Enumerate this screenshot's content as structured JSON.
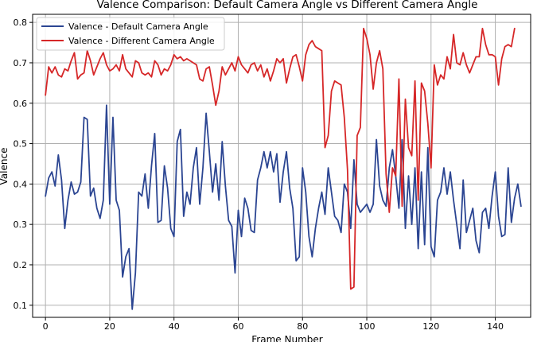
{
  "chart_data": {
    "type": "line",
    "title": "Valence Comparison: Default Camera Angle vs Different Camera Angle",
    "xlabel": "Frame Number",
    "ylabel": "Valence",
    "xlim": [
      -4,
      151
    ],
    "ylim": [
      0.07,
      0.82
    ],
    "xticks": [
      0,
      20,
      40,
      60,
      80,
      100,
      120,
      140
    ],
    "yticks": [
      0.1,
      0.2,
      0.3,
      0.4,
      0.5,
      0.6,
      0.7,
      0.8
    ],
    "grid": true,
    "legend_position": "top-left",
    "series": [
      {
        "name": "Valence - Default Camera Angle",
        "color": "#2b4592",
        "values": [
          0.37,
          0.415,
          0.43,
          0.395,
          0.472,
          0.41,
          0.29,
          0.36,
          0.405,
          0.375,
          0.38,
          0.405,
          0.565,
          0.56,
          0.37,
          0.39,
          0.34,
          0.315,
          0.36,
          0.595,
          0.35,
          0.565,
          0.36,
          0.335,
          0.17,
          0.22,
          0.24,
          0.09,
          0.18,
          0.38,
          0.37,
          0.425,
          0.34,
          0.445,
          0.525,
          0.305,
          0.31,
          0.445,
          0.39,
          0.29,
          0.27,
          0.505,
          0.535,
          0.32,
          0.38,
          0.35,
          0.44,
          0.49,
          0.35,
          0.44,
          0.575,
          0.48,
          0.38,
          0.45,
          0.36,
          0.505,
          0.395,
          0.31,
          0.295,
          0.18,
          0.335,
          0.27,
          0.365,
          0.34,
          0.285,
          0.28,
          0.41,
          0.44,
          0.48,
          0.44,
          0.48,
          0.43,
          0.475,
          0.355,
          0.43,
          0.48,
          0.39,
          0.34,
          0.21,
          0.22,
          0.44,
          0.38,
          0.27,
          0.22,
          0.29,
          0.34,
          0.38,
          0.325,
          0.44,
          0.38,
          0.32,
          0.31,
          0.28,
          0.4,
          0.38,
          0.29,
          0.46,
          0.35,
          0.33,
          0.34,
          0.35,
          0.33,
          0.35,
          0.51,
          0.395,
          0.36,
          0.345,
          0.44,
          0.485,
          0.42,
          0.34,
          0.51,
          0.29,
          0.42,
          0.3,
          0.44,
          0.24,
          0.43,
          0.25,
          0.49,
          0.245,
          0.22,
          0.36,
          0.38,
          0.44,
          0.375,
          0.43,
          0.36,
          0.3,
          0.24,
          0.41,
          0.28,
          0.31,
          0.34,
          0.26,
          0.23,
          0.33,
          0.34,
          0.29,
          0.37,
          0.43,
          0.32,
          0.27,
          0.275,
          0.44,
          0.305,
          0.365,
          0.4,
          0.345
        ]
      },
      {
        "name": "Valence - Different Camera Angle",
        "color": "#d62728",
        "values": [
          0.62,
          0.69,
          0.675,
          0.69,
          0.67,
          0.665,
          0.685,
          0.68,
          0.705,
          0.725,
          0.66,
          0.67,
          0.675,
          0.73,
          0.705,
          0.67,
          0.69,
          0.71,
          0.725,
          0.695,
          0.68,
          0.685,
          0.695,
          0.68,
          0.72,
          0.685,
          0.675,
          0.665,
          0.705,
          0.7,
          0.675,
          0.67,
          0.675,
          0.665,
          0.705,
          0.695,
          0.67,
          0.685,
          0.68,
          0.695,
          0.72,
          0.71,
          0.715,
          0.705,
          0.71,
          0.705,
          0.7,
          0.695,
          0.66,
          0.655,
          0.685,
          0.69,
          0.645,
          0.595,
          0.63,
          0.69,
          0.67,
          0.685,
          0.7,
          0.68,
          0.715,
          0.695,
          0.685,
          0.675,
          0.695,
          0.7,
          0.68,
          0.695,
          0.665,
          0.685,
          0.655,
          0.68,
          0.71,
          0.7,
          0.71,
          0.65,
          0.685,
          0.715,
          0.72,
          0.69,
          0.655,
          0.72,
          0.745,
          0.755,
          0.74,
          0.735,
          0.73,
          0.49,
          0.52,
          0.63,
          0.655,
          0.65,
          0.645,
          0.565,
          0.435,
          0.14,
          0.145,
          0.52,
          0.54,
          0.785,
          0.76,
          0.72,
          0.635,
          0.7,
          0.73,
          0.685,
          0.425,
          0.33,
          0.44,
          0.42,
          0.66,
          0.345,
          0.61,
          0.49,
          0.47,
          0.655,
          0.36,
          0.65,
          0.63,
          0.55,
          0.44,
          0.695,
          0.645,
          0.67,
          0.66,
          0.715,
          0.685,
          0.77,
          0.7,
          0.695,
          0.725,
          0.695,
          0.675,
          0.695,
          0.715,
          0.715,
          0.785,
          0.745,
          0.72,
          0.72,
          0.715,
          0.645,
          0.71,
          0.74,
          0.745,
          0.74,
          0.785
        ]
      }
    ]
  }
}
